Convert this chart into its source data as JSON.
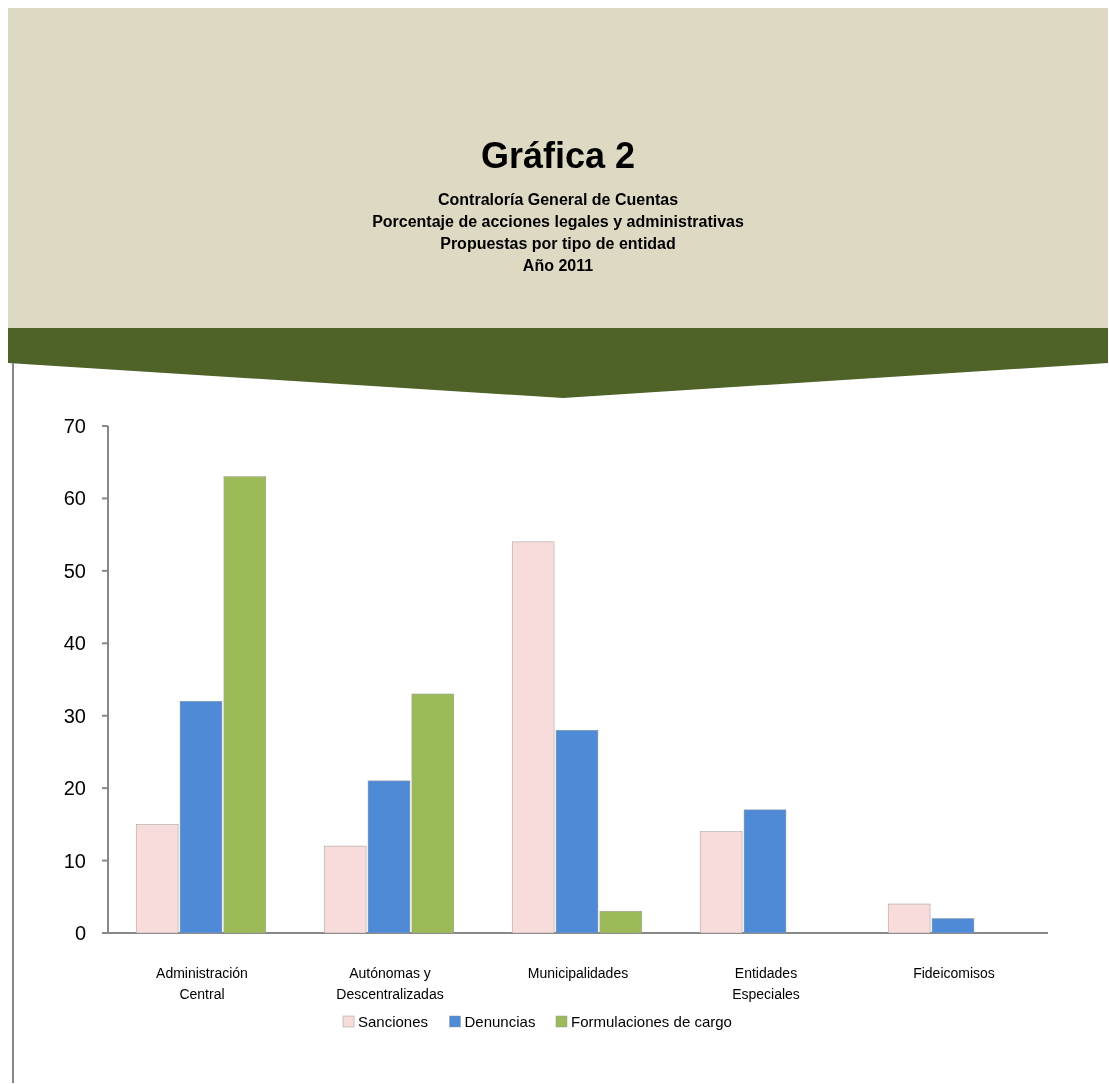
{
  "chart_data": {
    "type": "bar",
    "title": "Gráfica 2",
    "subtitle": "Contraloría General de Cuentas\nPorcentaje de acciones legales y administrativas\nPropuestas por tipo de entidad\nAño 2011",
    "categories": [
      "Administración Central",
      "Autónomas y Descentralizadas",
      "Municipalidades",
      "Entidades Especiales",
      "Fideicomisos"
    ],
    "series": [
      {
        "name": "Sanciones",
        "color": "#f8dcdc",
        "values": [
          15,
          12,
          54,
          14,
          4
        ]
      },
      {
        "name": "Denuncias",
        "color": "#4f8ad6",
        "values": [
          32,
          21,
          28,
          17,
          2
        ]
      },
      {
        "name": "Formulaciones de cargo",
        "color": "#9bbb59",
        "values": [
          63,
          33,
          3,
          null,
          null
        ]
      }
    ],
    "ylim": [
      0,
      70
    ],
    "yticks": [
      0,
      10,
      20,
      30,
      40,
      50,
      60,
      70
    ],
    "grid": false,
    "legend": "bottom"
  }
}
